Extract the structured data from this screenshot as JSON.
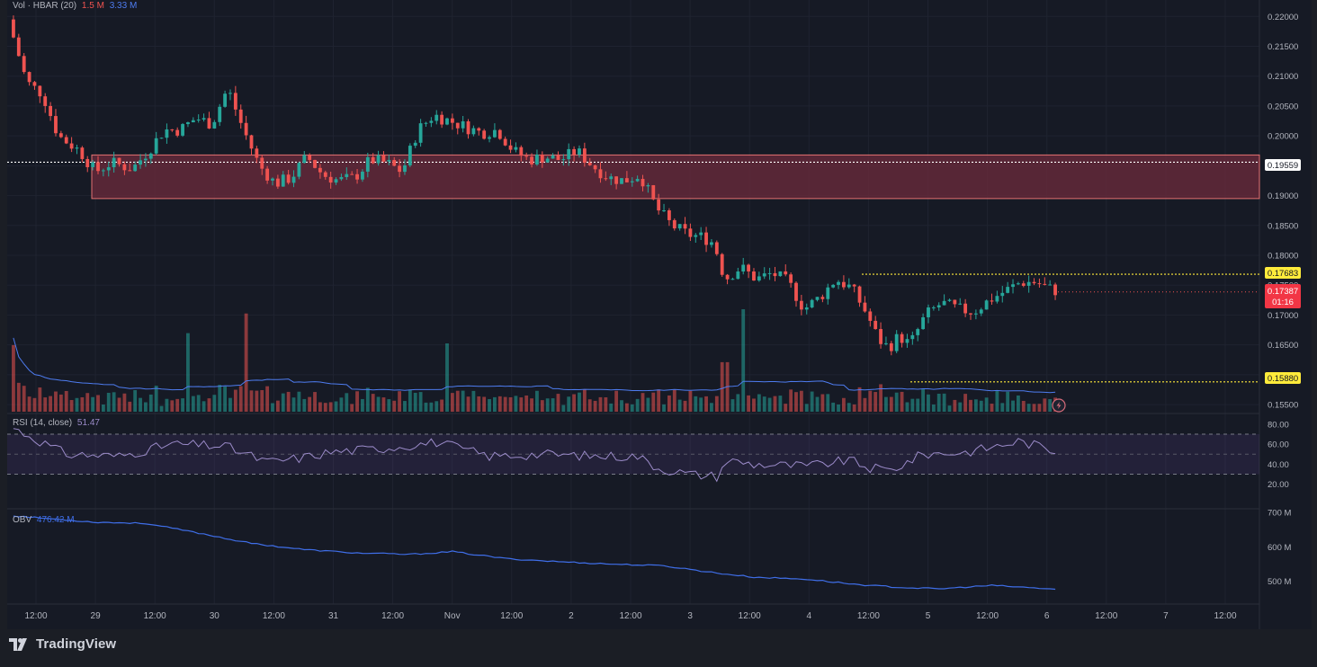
{
  "brand": {
    "name": "TradingView"
  },
  "colors": {
    "up": "#26a69a",
    "down": "#ef5350",
    "zone": "#6d2b3c",
    "zone_border": "#e57373",
    "rsi": "#9b8bc9",
    "obv": "#3f6ee8",
    "vol_ma": "#4e7cf0",
    "marker": "#ffeb3b"
  },
  "volume_panel": {
    "legend": {
      "name": "Vol · HBAR (20)",
      "value1": "1.5 M",
      "value2": "3.33 M"
    }
  },
  "rsi_panel": {
    "legend": {
      "name": "RSI (14, close)",
      "value": "51.47"
    },
    "ticks": [
      "80.00",
      "60.00",
      "40.00",
      "20.00"
    ]
  },
  "obv_panel": {
    "legend": {
      "name": "OBV",
      "value": "476.42 M"
    },
    "ticks": [
      "700 M",
      "600 M",
      "500 M"
    ]
  },
  "price_axis": {
    "ticks": [
      "0.22000",
      "0.21500",
      "0.21000",
      "0.20500",
      "0.20000",
      "0.19500",
      "0.19000",
      "0.18500",
      "0.18000",
      "0.17500",
      "0.17000",
      "0.16500",
      "0.16000",
      "0.15500"
    ],
    "badges": {
      "resistance": "0.17683",
      "last_price": "0.17387",
      "countdown": "01:16",
      "support": "0.15880",
      "zone_line": "0.19559"
    }
  },
  "time_axis": {
    "labels": [
      "12:00",
      "29",
      "12:00",
      "30",
      "12:00",
      "31",
      "12:00",
      "Nov",
      "12:00",
      "2",
      "12:00",
      "3",
      "12:00",
      "4",
      "12:00",
      "5",
      "12:00",
      "6",
      "12:00",
      "7",
      "12:00"
    ]
  },
  "chart_data": {
    "type": "candlestick",
    "symbol": "HBAR",
    "y_range": [
      0.152,
      0.222
    ],
    "levels": {
      "zone_top": 0.1968,
      "zone_bottom": 0.1895,
      "zone_line": 0.19559,
      "resistance": 0.17683,
      "support": 0.1588,
      "last_price": 0.17387
    },
    "close_path": [
      [
        0,
        0.218
      ],
      [
        3,
        0.209
      ],
      [
        6,
        0.207
      ],
      [
        9,
        0.2
      ],
      [
        13,
        0.1975
      ],
      [
        16,
        0.194
      ],
      [
        19,
        0.1955
      ],
      [
        23,
        0.1945
      ],
      [
        26,
        0.1975
      ],
      [
        29,
        0.201
      ],
      [
        32,
        0.201
      ],
      [
        35,
        0.203
      ],
      [
        38,
        0.202
      ],
      [
        41,
        0.208
      ],
      [
        44,
        0.201
      ],
      [
        47,
        0.195
      ],
      [
        50,
        0.192
      ],
      [
        53,
        0.193
      ],
      [
        56,
        0.1965
      ],
      [
        59,
        0.1935
      ],
      [
        62,
        0.1925
      ],
      [
        65,
        0.193
      ],
      [
        68,
        0.196
      ],
      [
        71,
        0.1955
      ],
      [
        74,
        0.194
      ],
      [
        77,
        0.201
      ],
      [
        80,
        0.2035
      ],
      [
        83,
        0.2025
      ],
      [
        86,
        0.2015
      ],
      [
        89,
        0.2005
      ],
      [
        92,
        0.201
      ],
      [
        95,
        0.1975
      ],
      [
        98,
        0.196
      ],
      [
        101,
        0.1965
      ],
      [
        104,
        0.196
      ],
      [
        107,
        0.1975
      ],
      [
        110,
        0.195
      ],
      [
        113,
        0.193
      ],
      [
        116,
        0.1925
      ],
      [
        119,
        0.1935
      ],
      [
        122,
        0.188
      ],
      [
        125,
        0.185
      ],
      [
        128,
        0.1835
      ],
      [
        131,
        0.183
      ],
      [
        133,
        0.182
      ],
      [
        135,
        0.176
      ],
      [
        138,
        0.178
      ],
      [
        141,
        0.176
      ],
      [
        144,
        0.177
      ],
      [
        147,
        0.1755
      ],
      [
        150,
        0.171
      ],
      [
        153,
        0.173
      ],
      [
        156,
        0.176
      ],
      [
        159,
        0.1745
      ],
      [
        162,
        0.17
      ],
      [
        164,
        0.166
      ],
      [
        166,
        0.1645
      ],
      [
        168,
        0.1665
      ],
      [
        170,
        0.165
      ],
      [
        173,
        0.17
      ],
      [
        176,
        0.172
      ],
      [
        179,
        0.171
      ],
      [
        182,
        0.1705
      ],
      [
        185,
        0.1725
      ],
      [
        188,
        0.174
      ],
      [
        191,
        0.1755
      ],
      [
        194,
        0.1755
      ],
      [
        196,
        0.1745
      ],
      [
        198,
        0.174
      ]
    ],
    "rsi_path": [
      [
        0,
        76
      ],
      [
        10,
        50
      ],
      [
        20,
        48
      ],
      [
        30,
        60
      ],
      [
        40,
        58
      ],
      [
        48,
        42
      ],
      [
        54,
        46
      ],
      [
        60,
        52
      ],
      [
        70,
        56
      ],
      [
        80,
        62
      ],
      [
        90,
        48
      ],
      [
        100,
        50
      ],
      [
        110,
        48
      ],
      [
        118,
        48
      ],
      [
        122,
        36
      ],
      [
        128,
        30
      ],
      [
        133,
        28
      ],
      [
        135,
        44
      ],
      [
        140,
        40
      ],
      [
        150,
        38
      ],
      [
        158,
        44
      ],
      [
        162,
        36
      ],
      [
        166,
        34
      ],
      [
        172,
        50
      ],
      [
        180,
        52
      ],
      [
        186,
        58
      ],
      [
        190,
        63
      ],
      [
        194,
        58
      ],
      [
        198,
        51
      ]
    ],
    "obv_path": [
      [
        0,
        690
      ],
      [
        15,
        672
      ],
      [
        25,
        668
      ],
      [
        35,
        640
      ],
      [
        45,
        610
      ],
      [
        55,
        592
      ],
      [
        65,
        582
      ],
      [
        75,
        578
      ],
      [
        83,
        586
      ],
      [
        93,
        566
      ],
      [
        103,
        557
      ],
      [
        113,
        550
      ],
      [
        123,
        545
      ],
      [
        133,
        524
      ],
      [
        140,
        512
      ],
      [
        150,
        506
      ],
      [
        160,
        490
      ],
      [
        168,
        482
      ],
      [
        175,
        478
      ],
      [
        185,
        488
      ],
      [
        198,
        476
      ]
    ],
    "candle_count": 198
  }
}
